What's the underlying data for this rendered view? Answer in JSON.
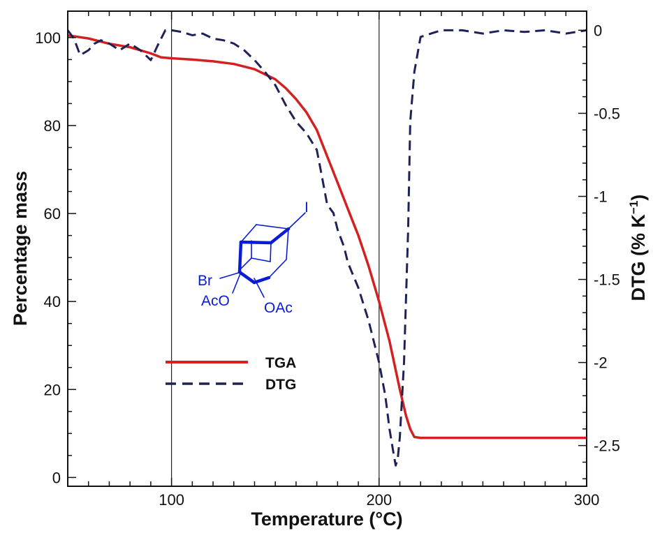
{
  "chart_data": {
    "type": "line",
    "xlabel": "Temperature (°C)",
    "ylabel_left": "Percentage mass",
    "ylabel_right": "DTG (% K",
    "ylabel_right_sup": "−1",
    "ylabel_right_close": ")",
    "xlim": [
      50,
      300
    ],
    "ylim_left": [
      -2,
      106
    ],
    "ylim_right": [
      -2.745,
      0.115
    ],
    "x_ticks": [
      100,
      200,
      300
    ],
    "x_tick_labels": [
      "100",
      "200",
      "300"
    ],
    "y_left_ticks": [
      0,
      20,
      40,
      60,
      80,
      100
    ],
    "y_left_tick_labels": [
      "0",
      "20",
      "40",
      "60",
      "80",
      "100"
    ],
    "y_right_ticks": [
      0,
      -0.5,
      -1,
      -1.5,
      -2,
      -2.5
    ],
    "y_right_tick_labels": [
      "0",
      "-0.5",
      "-1",
      "-1.5",
      "-2",
      "-2.5"
    ],
    "vertical_reference_lines": [
      100,
      200
    ],
    "grid": false,
    "legend_position": "lower-left",
    "series": [
      {
        "name": "TGA",
        "axis": "left",
        "color": "#d42020",
        "style": "solid",
        "x": [
          50,
          60,
          70,
          80,
          90,
          95,
          100,
          110,
          120,
          130,
          140,
          150,
          155,
          160,
          165,
          170,
          175,
          180,
          185,
          190,
          195,
          200,
          205,
          210,
          213,
          215,
          217,
          220,
          230,
          250,
          270,
          300
        ],
        "y": [
          100.5,
          99.8,
          98.6,
          97.8,
          96.4,
          95.5,
          95.3,
          95.0,
          94.6,
          94.0,
          92.8,
          90.5,
          88.5,
          86.0,
          83.0,
          79.0,
          73.0,
          67.0,
          61.0,
          55.0,
          48.0,
          40.0,
          31.0,
          20.0,
          14.0,
          11.0,
          9.2,
          9.0,
          9.0,
          9.0,
          9.0,
          9.0
        ]
      },
      {
        "name": "DTG",
        "axis": "right",
        "color": "#1e2357",
        "style": "dashed",
        "x": [
          50,
          53,
          56,
          60,
          63,
          66,
          70,
          75,
          80,
          85,
          90,
          93,
          95,
          97,
          100,
          105,
          110,
          115,
          120,
          125,
          130,
          135,
          140,
          145,
          150,
          155,
          160,
          165,
          170,
          172,
          175,
          178,
          180,
          183,
          185,
          190,
          195,
          200,
          203,
          205,
          207,
          208,
          209,
          210,
          212,
          214,
          215,
          217,
          220,
          230,
          240,
          250,
          260,
          270,
          280,
          290,
          300
        ],
        "y": [
          0.0,
          -0.05,
          -0.15,
          -0.12,
          -0.08,
          -0.06,
          -0.08,
          -0.12,
          -0.08,
          -0.12,
          -0.18,
          -0.1,
          -0.05,
          0.0,
          0.0,
          -0.01,
          -0.03,
          -0.02,
          -0.05,
          -0.06,
          -0.08,
          -0.12,
          -0.18,
          -0.25,
          -0.33,
          -0.45,
          -0.55,
          -0.62,
          -0.72,
          -0.85,
          -1.05,
          -1.1,
          -1.2,
          -1.3,
          -1.4,
          -1.55,
          -1.75,
          -2.0,
          -2.2,
          -2.4,
          -2.55,
          -2.62,
          -2.58,
          -2.45,
          -2.0,
          -1.2,
          -0.55,
          -0.25,
          -0.04,
          0.0,
          0.0,
          -0.02,
          0.0,
          -0.01,
          0.0,
          -0.02,
          0.0
        ]
      }
    ]
  },
  "molecule": {
    "labels": {
      "iodine": "I",
      "bromine": "Br",
      "acetoxy_left": "AcO",
      "acetoxy_right": "OAc"
    },
    "color": "#0a1bd6"
  }
}
